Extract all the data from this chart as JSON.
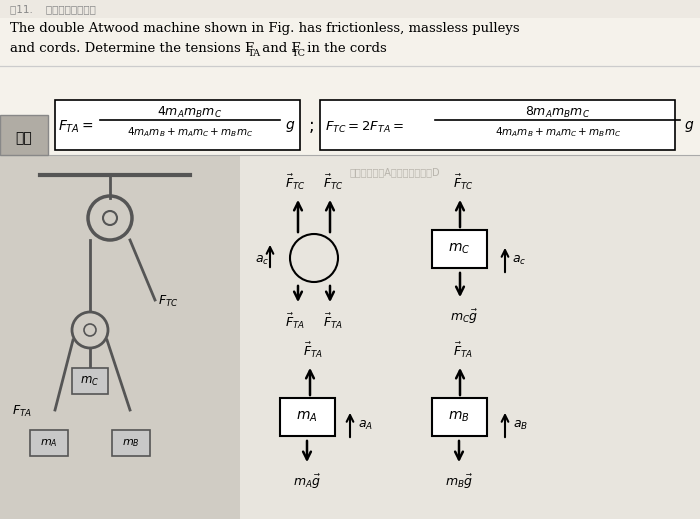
{
  "bg_color": "#f0ede6",
  "text_bg": "#f5f2eb",
  "title_line1": "The double Atwood machine shown in Fig. has frictionless, massless pulleys",
  "title_line2": "and cords. Determine the tensions F",
  "title_line2b": "TA",
  "title_line2c": " and F",
  "title_line2d": "TC",
  "title_line2e": " in the cords",
  "jiexi_label": "解析",
  "jiexi_bg": "#b0aca4",
  "formula_box_bg": "white",
  "diagram_bg": "#e8e4dc",
  "left_bg": "#d4d0c8"
}
